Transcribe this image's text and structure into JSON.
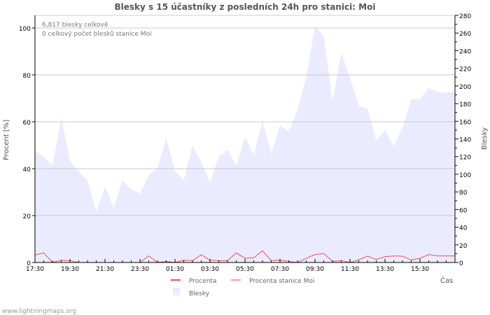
{
  "chart_data": {
    "type": "area",
    "title": "Blesky s 15 účastníky z posledních 24h pro stanici: Moi",
    "xlabel": "Čas",
    "ylabel_left": "Procent   [%]",
    "ylabel_right": "Blesky",
    "ylim_left": [
      0,
      100
    ],
    "ylim_right": [
      0,
      280
    ],
    "left_ticks": [
      "0",
      "20",
      "40",
      "60",
      "80",
      "100"
    ],
    "right_ticks": [
      "0",
      "20",
      "40",
      "60",
      "80",
      "100",
      "120",
      "140",
      "160",
      "180",
      "200",
      "220",
      "240",
      "260",
      "280"
    ],
    "x_tick_labels": [
      "17:30",
      "19:30",
      "21:30",
      "23:30",
      "01:30",
      "03:30",
      "05:30",
      "07:30",
      "09:30",
      "11:30",
      "13:30",
      "15:30"
    ],
    "grid": true,
    "annotations": [
      "6,817 blesky celkově",
      "0 celkový počet blesků stanice Moi"
    ],
    "legend": {
      "placement": "bottom",
      "items": [
        {
          "label": "Procenta",
          "color": "#e8505a"
        },
        {
          "label": "Procenta stanice Moi",
          "color": "#ff9c9c"
        },
        {
          "label": "Blesky",
          "color": "#ebebff"
        }
      ]
    },
    "series": [
      {
        "name": "Blesky",
        "axis": "right",
        "color": "#ebebff",
        "values": [
          127,
          120,
          110,
          164,
          115,
          103,
          93,
          57,
          86,
          62,
          93,
          83,
          78,
          99,
          107,
          141,
          104,
          93,
          133,
          114,
          91,
          120,
          128,
          110,
          142,
          122,
          161,
          123,
          156,
          148,
          173,
          210,
          268,
          256,
          183,
          238,
          209,
          178,
          174,
          138,
          150,
          132,
          153,
          185,
          185,
          198,
          193,
          193,
          193
        ]
      },
      {
        "name": "Procenta",
        "axis": "left",
        "color": "#e8505a",
        "values": [
          3.2,
          4.1,
          0,
          1,
          0.8,
          0,
          0,
          0,
          0,
          0,
          0,
          0,
          0,
          2.8,
          0,
          0.5,
          0,
          1,
          0.8,
          3.3,
          1,
          0.8,
          0.8,
          4.1,
          1.8,
          2,
          5,
          0.8,
          1,
          0.5,
          0,
          1.8,
          3.4,
          3.8,
          0.5,
          0.8,
          0,
          1.2,
          2.7,
          1.3,
          2.5,
          2.8,
          2.7,
          1.1,
          1.8,
          3.4,
          2.8,
          2.8,
          2.8
        ]
      },
      {
        "name": "Procenta stanice Moi",
        "axis": "left",
        "color": "#ff9c9c",
        "values": [
          0,
          0,
          0,
          0,
          0,
          0,
          0,
          0,
          0,
          0,
          0,
          0,
          0,
          0,
          0,
          0,
          0,
          0,
          0,
          0,
          0,
          0,
          0,
          0,
          0,
          0,
          0,
          0,
          0,
          0,
          0,
          0,
          0,
          0,
          0,
          0,
          0,
          0,
          0,
          0,
          0,
          0,
          0,
          0,
          0,
          0,
          0,
          0,
          0
        ]
      }
    ]
  },
  "footer": {
    "site": "www.lightningmaps.org"
  }
}
